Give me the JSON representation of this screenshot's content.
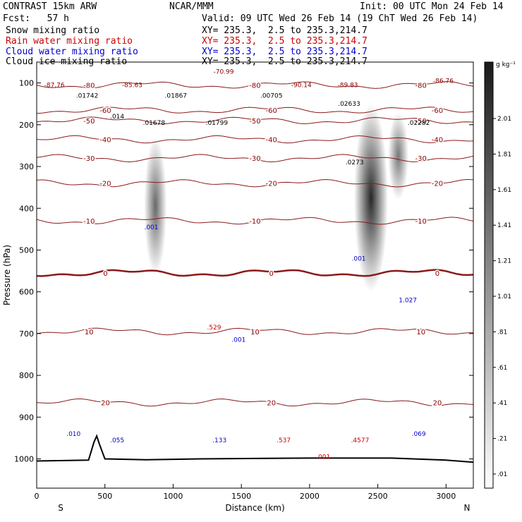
{
  "header": {
    "title_left": "CONTRAST 15km ARW",
    "center": "NCAR/MMM",
    "init": "Init: 00 UTC Mon 24 Feb 14",
    "fcst": "Fcst:   57 h",
    "valid": "Valid: 09 UTC Wed 26 Feb 14 (19 ChT Wed 26 Feb 14)",
    "lines": [
      {
        "name": "Snow mixing ratio",
        "xy": "XY= 235.3,  2.5 to 235.3,214.7",
        "color": "#000000"
      },
      {
        "name": "Rain water mixing ratio",
        "xy": "XY= 235.3,  2.5 to 235.3,214.7",
        "color": "#cc0000"
      },
      {
        "name": "Cloud water mixing ratio",
        "xy": "XY= 235.3,  2.5 to 235.3,214.7",
        "color": "#0000cc"
      },
      {
        "name": "Cloud ice mixing ratio",
        "xy": "XY= 235.3,  2.5 to 235.3,214.7",
        "color": "#000000"
      }
    ]
  },
  "chart_data": {
    "type": "cross-section contour",
    "xlabel": "Distance (km)",
    "ylabel": "Pressure (hPa)",
    "xlim": [
      0,
      3200
    ],
    "ylim": [
      1070,
      50
    ],
    "x_ticks": [
      0,
      500,
      1000,
      1500,
      2000,
      2500,
      3000
    ],
    "y_ticks": [
      100,
      200,
      300,
      400,
      500,
      600,
      700,
      800,
      900,
      1000
    ],
    "x_end_labels": {
      "left": "S",
      "right": "N"
    },
    "colorbar": {
      "unit": "g kg⁻¹",
      "labels": [
        "2.01",
        "1.81",
        "1.61",
        "1.41",
        "1.21",
        "1.01",
        ".81",
        ".61",
        ".41",
        ".21",
        ".01"
      ]
    },
    "temperature_levels": [
      {
        "label": "-80",
        "p": 105
      },
      {
        "label": "-60",
        "p": 165
      },
      {
        "label": "-50",
        "p": 190
      },
      {
        "label": "-40",
        "p": 235
      },
      {
        "label": "-30",
        "p": 280
      },
      {
        "label": "-20",
        "p": 340
      },
      {
        "label": "-10",
        "p": 430
      },
      {
        "label": "0",
        "p": 555
      },
      {
        "label": "10",
        "p": 695
      },
      {
        "label": "20",
        "p": 865
      }
    ],
    "snow_columns": [
      {
        "x": 870,
        "p_top": 230,
        "p_bottom": 560,
        "max": 1.0
      },
      {
        "x": 2450,
        "p_top": 150,
        "p_bottom": 600,
        "max": 2.0
      },
      {
        "x": 2650,
        "p_top": 170,
        "p_bottom": 380,
        "max": 0.8
      }
    ],
    "terrain": [
      {
        "x": 0,
        "p": 1005
      },
      {
        "x": 200,
        "p": 1004
      },
      {
        "x": 380,
        "p": 1003
      },
      {
        "x": 420,
        "p": 960
      },
      {
        "x": 440,
        "p": 945
      },
      {
        "x": 460,
        "p": 965
      },
      {
        "x": 500,
        "p": 1000
      },
      {
        "x": 800,
        "p": 1002
      },
      {
        "x": 1200,
        "p": 1000
      },
      {
        "x": 2000,
        "p": 998
      },
      {
        "x": 2600,
        "p": 998
      },
      {
        "x": 3000,
        "p": 1003
      },
      {
        "x": 3200,
        "p": 1008
      }
    ],
    "point_labels": [
      {
        "text": "-87.76",
        "x": 130,
        "p": 110,
        "color": "#8b0000"
      },
      {
        "text": ".01742",
        "x": 370,
        "p": 135,
        "color": "#000000"
      },
      {
        "text": "-85.63",
        "x": 700,
        "p": 110,
        "color": "#8b0000"
      },
      {
        "text": ".01867",
        "x": 1020,
        "p": 135,
        "color": "#000000"
      },
      {
        "text": "-70.99",
        "x": 1370,
        "p": 78,
        "color": "#8b0000"
      },
      {
        "text": ".00705",
        "x": 1720,
        "p": 135,
        "color": "#000000"
      },
      {
        "text": "-90.14",
        "x": 1940,
        "p": 110,
        "color": "#8b0000"
      },
      {
        "text": "-89.83",
        "x": 2280,
        "p": 110,
        "color": "#8b0000"
      },
      {
        "text": ".02633",
        "x": 2290,
        "p": 155,
        "color": "#000000"
      },
      {
        "text": "-86.76",
        "x": 2980,
        "p": 100,
        "color": "#8b0000"
      },
      {
        "text": ".01678",
        "x": 860,
        "p": 200,
        "color": "#000000"
      },
      {
        "text": ".01799",
        "x": 1320,
        "p": 200,
        "color": "#000000"
      },
      {
        "text": ".02282",
        "x": 2800,
        "p": 200,
        "color": "#000000"
      },
      {
        "text": ".0273",
        "x": 2330,
        "p": 295,
        "color": "#000000"
      },
      {
        "text": ".014",
        "x": 590,
        "p": 185,
        "color": "#000000"
      },
      {
        "text": ".001",
        "x": 840,
        "p": 450,
        "color": "#0000cc"
      },
      {
        "text": ".001",
        "x": 2360,
        "p": 525,
        "color": "#0000cc"
      },
      {
        "text": "1.027",
        "x": 2720,
        "p": 625,
        "color": "#0000cc"
      },
      {
        "text": ".529",
        "x": 1300,
        "p": 690,
        "color": "#cc0000"
      },
      {
        "text": ".001",
        "x": 1480,
        "p": 720,
        "color": "#0000cc"
      },
      {
        "text": ".010",
        "x": 270,
        "p": 945,
        "color": "#0000cc"
      },
      {
        "text": ".055",
        "x": 590,
        "p": 960,
        "color": "#0000cc"
      },
      {
        "text": ".133",
        "x": 1340,
        "p": 960,
        "color": "#0000cc"
      },
      {
        "text": ".537",
        "x": 1810,
        "p": 960,
        "color": "#cc0000"
      },
      {
        "text": ".4577",
        "x": 2370,
        "p": 960,
        "color": "#cc0000"
      },
      {
        "text": ".069",
        "x": 2800,
        "p": 945,
        "color": "#0000cc"
      },
      {
        "text": ".001",
        "x": 2100,
        "p": 1000,
        "color": "#cc0000"
      }
    ]
  }
}
